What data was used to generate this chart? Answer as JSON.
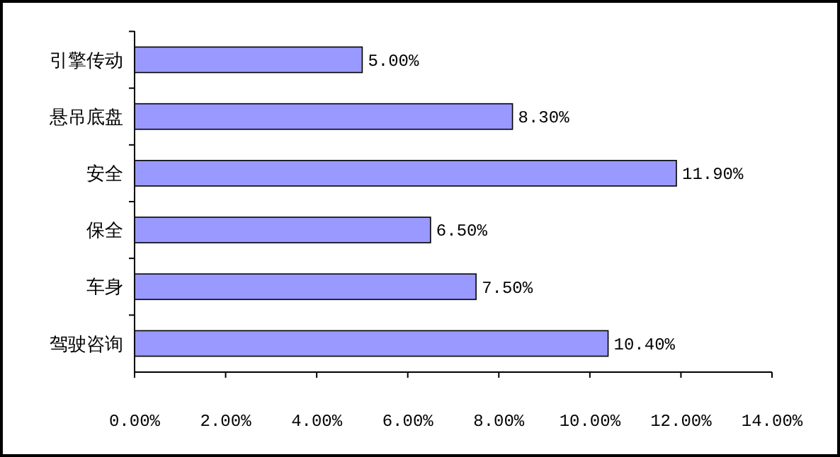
{
  "chart_data": {
    "type": "bar",
    "orientation": "horizontal",
    "categories": [
      "引擎传动",
      "悬吊底盘",
      "安全",
      "保全",
      "车身",
      "驾驶咨询"
    ],
    "values": [
      5,
      8.3,
      11.9,
      6.5,
      7.5,
      10.4
    ],
    "value_labels": [
      "5.00%",
      "8.30%",
      "11.90%",
      "6.50%",
      "7.50%",
      "10.40%"
    ],
    "color": "#9999ff",
    "xlim": [
      0,
      14
    ],
    "xticks": [
      {
        "value": 0,
        "label": "0.00%"
      },
      {
        "value": 2,
        "label": "2.00%"
      },
      {
        "value": 4,
        "label": "4.00%"
      },
      {
        "value": 6,
        "label": "6.00%"
      },
      {
        "value": 8,
        "label": "8.00%"
      },
      {
        "value": 10,
        "label": "10.00%"
      },
      {
        "value": 12,
        "label": "12.00%"
      },
      {
        "value": 14,
        "label": "14.00%"
      }
    ],
    "grid": false
  }
}
